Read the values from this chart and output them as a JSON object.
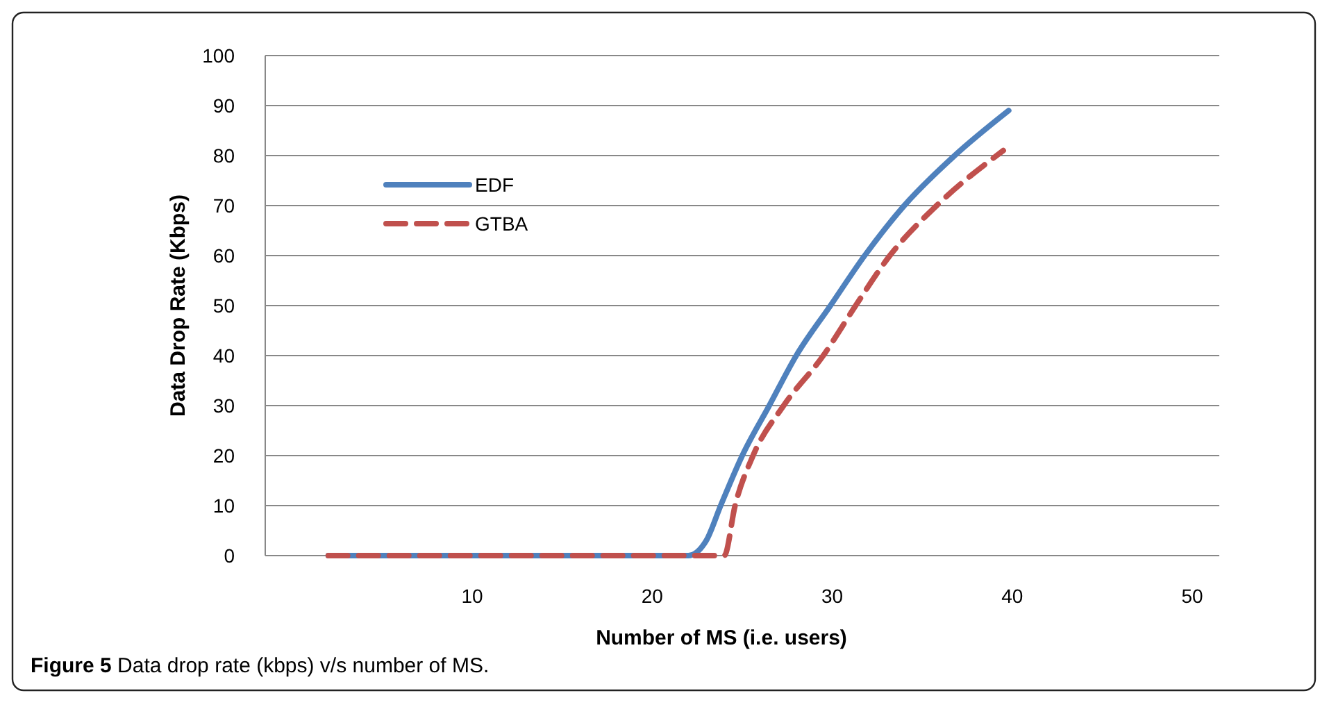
{
  "chart_data": {
    "type": "line",
    "xlabel": "Number of MS (i.e. users)",
    "ylabel": "Data Drop Rate (Kbps)",
    "xlim": [
      -1.5,
      51.5
    ],
    "xticks": [
      10,
      20,
      30,
      40,
      50
    ],
    "ylim": [
      0,
      100
    ],
    "yticks": [
      0,
      10,
      20,
      30,
      40,
      50,
      60,
      70,
      80,
      90,
      100
    ],
    "grid": "y",
    "legend": "top left",
    "annotations": [
      "Figure 5 Data drop rate (kbps) v/s number of MS."
    ],
    "series": [
      {
        "name": "EDF",
        "color": "#4f81bd",
        "line_style": "solid",
        "x": [
          2,
          4,
          6,
          8,
          10,
          12,
          14,
          16,
          18,
          20,
          21,
          22,
          23,
          23.8,
          25,
          26.5,
          28,
          29.9,
          31.8,
          34,
          36.8,
          39.8
        ],
        "values": [
          0,
          0,
          0,
          0,
          0,
          0,
          0,
          0,
          0,
          0,
          0,
          0,
          3,
          10,
          20,
          30,
          40,
          50,
          60,
          70,
          80,
          89
        ]
      },
      {
        "name": "GTBA",
        "color": "#c0504d",
        "line_style": "dashed",
        "x": [
          2,
          4,
          6,
          8,
          10,
          12,
          14,
          16,
          18,
          20,
          22,
          23,
          24,
          24.6,
          25.6,
          27.3,
          29.5,
          31.3,
          33.2,
          35.8,
          39.5
        ],
        "values": [
          0,
          0,
          0,
          0,
          0,
          0,
          0,
          0,
          0,
          0,
          0,
          0,
          0,
          10,
          20,
          30,
          40,
          50,
          60,
          70,
          81
        ]
      }
    ]
  }
}
